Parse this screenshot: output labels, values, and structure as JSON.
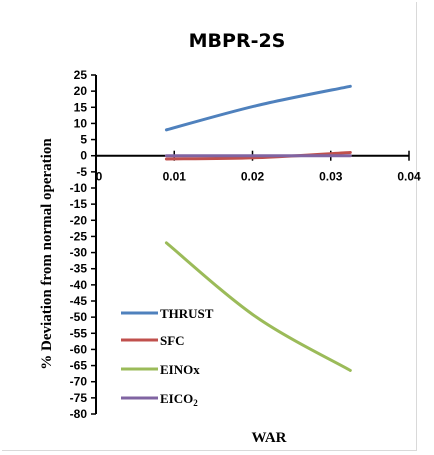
{
  "chart_data": {
    "type": "line",
    "title": "MBPR-2S",
    "xlabel": "WAR",
    "ylabel": "% Deviation from normal operation",
    "xlim": [
      0,
      0.04
    ],
    "ylim": [
      -80,
      25
    ],
    "xticks": [
      "0",
      "0.01",
      "0.02",
      "0.03",
      "0.04"
    ],
    "yticks": [
      "25",
      "20",
      "15",
      "10",
      "5",
      "0",
      "-5",
      "-10",
      "-15",
      "-20",
      "-25",
      "-30",
      "-35",
      "-40",
      "-45",
      "-50",
      "-55",
      "-60",
      "-65",
      "-70",
      "-75",
      "-80"
    ],
    "grid": false,
    "legend_position": "bottom-left",
    "legend_labels": {
      "thrust": "THRUST",
      "sfc": "SFC",
      "einox": "EINOx",
      "eico2_base": "EICO",
      "eico2_sub": "2"
    },
    "x": [
      0.009,
      0.0205,
      0.0325
    ],
    "series": [
      {
        "key": "thrust",
        "name": "THRUST",
        "color": "#4f81bd",
        "values": [
          8,
          15.5,
          21.5
        ]
      },
      {
        "key": "sfc",
        "name": "SFC",
        "color": "#c0504d",
        "values": [
          -1,
          -0.6,
          1
        ]
      },
      {
        "key": "einox",
        "name": "EINOx",
        "color": "#9bbb59",
        "values": [
          -27,
          -50,
          -66.5
        ]
      },
      {
        "key": "eico2",
        "name": "EICO2",
        "color": "#8064a2",
        "values": [
          0,
          0,
          0
        ]
      }
    ]
  }
}
